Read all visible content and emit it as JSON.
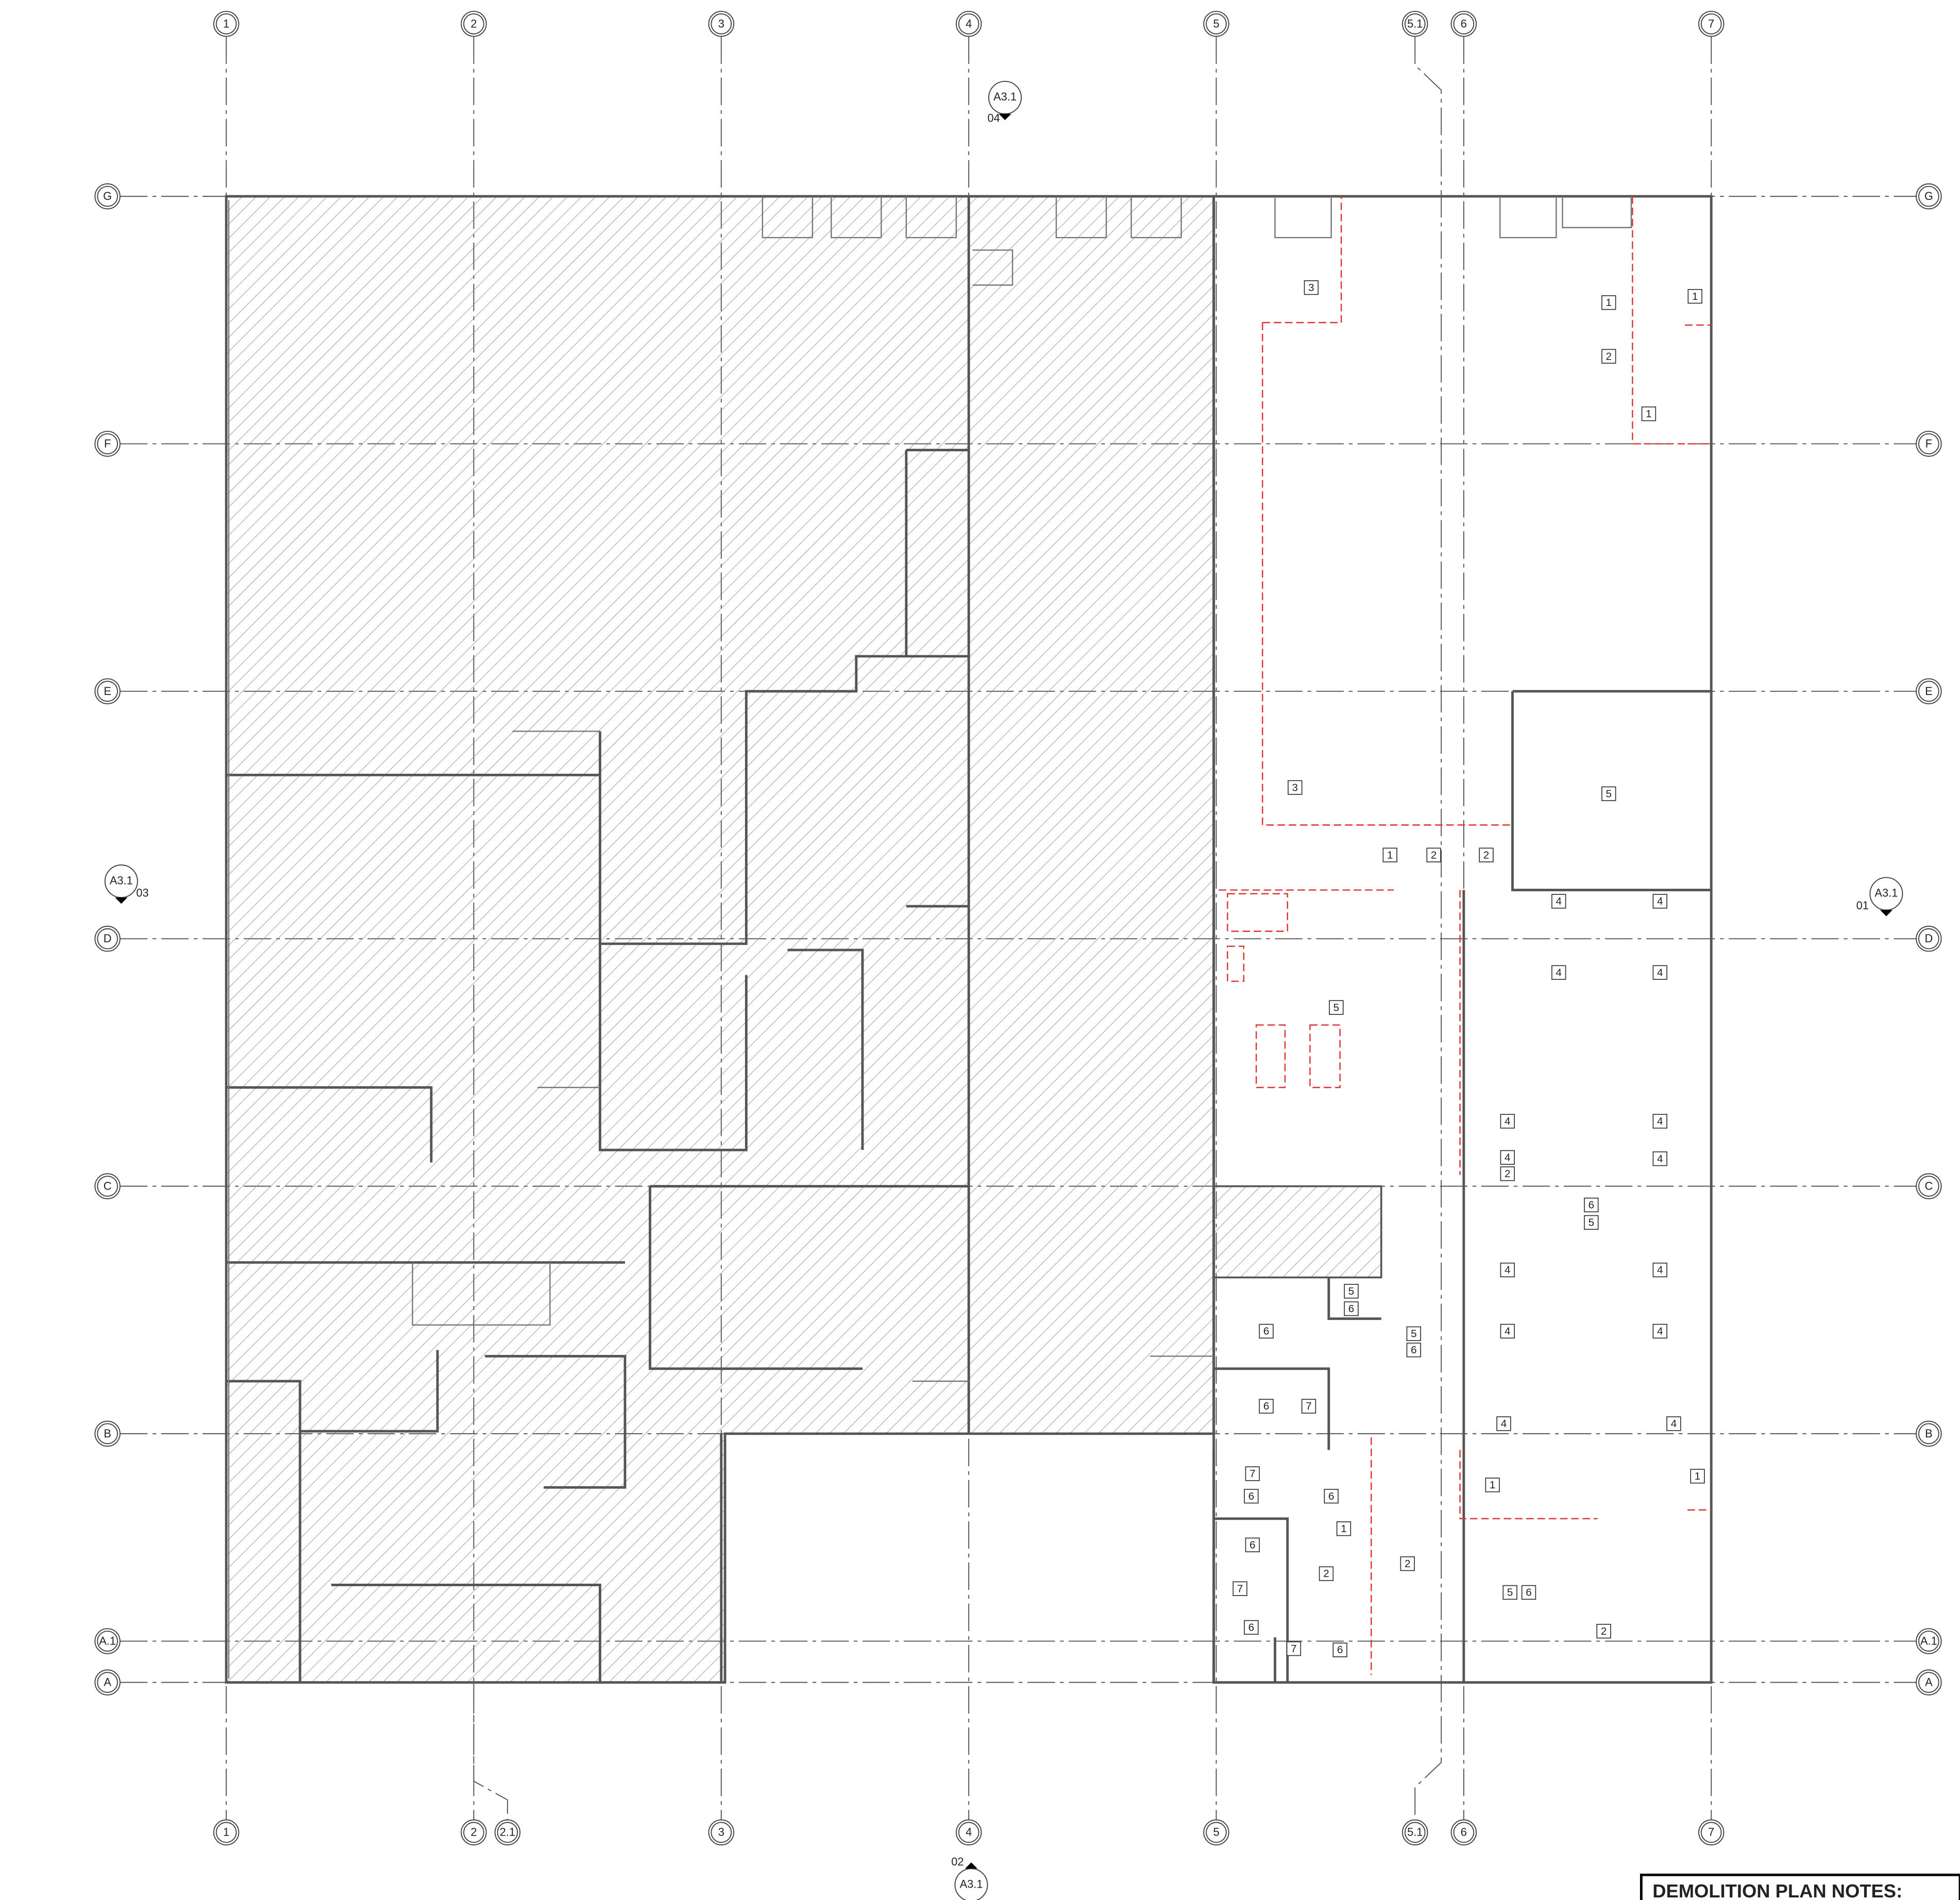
{
  "grid": {
    "columns_top": [
      "1",
      "2",
      "3",
      "4",
      "5",
      "5.1",
      "6",
      "7"
    ],
    "columns_bottom": [
      "1",
      "2",
      "2.1",
      "3",
      "4",
      "5",
      "5.1",
      "6",
      "7"
    ],
    "rows": [
      "G",
      "F",
      "E",
      "D",
      "C",
      "B",
      "A.1",
      "A"
    ]
  },
  "section_markers": [
    {
      "sheet": "A3.1",
      "view": "04"
    },
    {
      "sheet": "A3.1",
      "view": "03"
    },
    {
      "sheet": "A3.1",
      "view": "01"
    },
    {
      "sheet": "A3.1",
      "view": "02"
    }
  ],
  "keynotes": [
    "3",
    "1",
    "1",
    "2",
    "1",
    "5",
    "3",
    "1",
    "2",
    "2",
    "4",
    "4",
    "4",
    "4",
    "5",
    "4",
    "4",
    "4",
    "2",
    "4",
    "6",
    "5",
    "4",
    "4",
    "5",
    "6",
    "6",
    "5",
    "6",
    "4",
    "4",
    "6",
    "7",
    "4",
    "4",
    "7",
    "6",
    "6",
    "1",
    "1",
    "1",
    "6",
    "2",
    "2",
    "7",
    "5",
    "6",
    "6",
    "2",
    "7",
    "6"
  ],
  "notes_title": "DEMOLITION PLAN NOTES:"
}
